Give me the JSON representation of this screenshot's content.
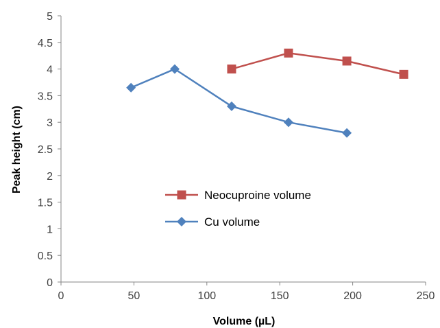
{
  "chart_data": {
    "type": "line",
    "xlabel": "Volume (µL)",
    "ylabel": "Peak height (cm)",
    "xlim": [
      0,
      250
    ],
    "ylim": [
      0,
      5
    ],
    "x_ticks": [
      "0",
      "50",
      "100",
      "150",
      "200",
      "250"
    ],
    "y_ticks": [
      "0",
      "0.5",
      "1",
      "1.5",
      "2",
      "2.5",
      "3",
      "3.5",
      "4",
      "4.5",
      "5"
    ],
    "grid": false,
    "legend_position": "center",
    "series": [
      {
        "name": "Neocuproine volume",
        "color": "#C0504D",
        "marker": "square",
        "x": [
          117,
          156,
          196,
          235
        ],
        "y": [
          4.0,
          4.3,
          4.15,
          3.9
        ]
      },
      {
        "name": "Cu volume",
        "color": "#4F81BD",
        "marker": "diamond",
        "x": [
          48,
          78,
          117,
          156,
          196
        ],
        "y": [
          3.65,
          4.0,
          3.3,
          3.0,
          2.8
        ]
      }
    ]
  }
}
